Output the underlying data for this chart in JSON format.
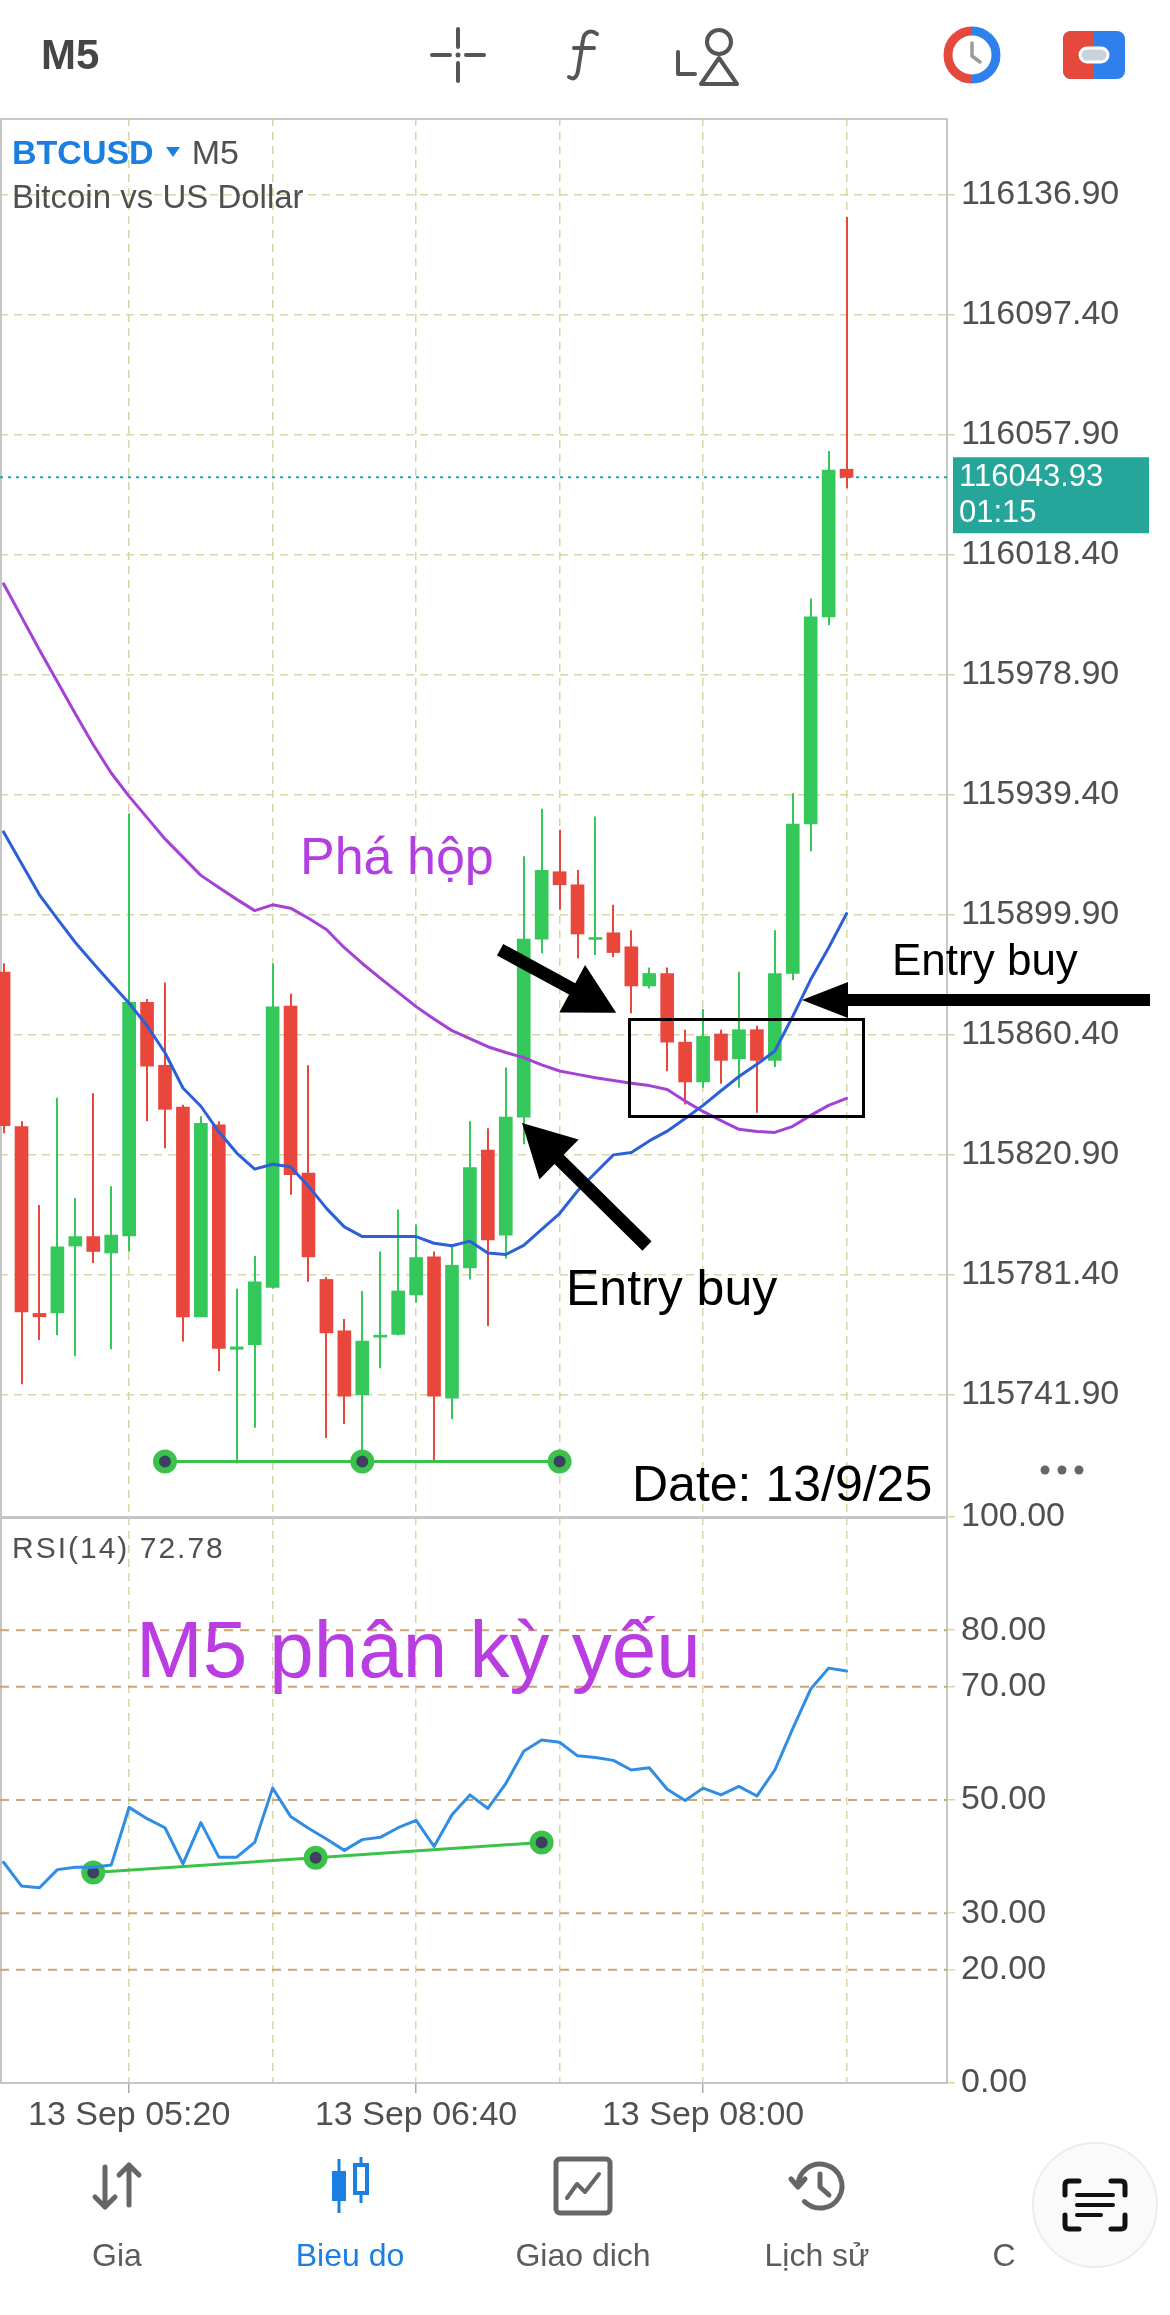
{
  "chart_data": [
    {
      "type": "candlestick",
      "title": "BTCUSD",
      "subtitle": "Bitcoin vs US Dollar",
      "x": [
        "--09-13T04:45",
        "--09-13T04:50",
        "--09-13T04:55",
        "--09-13T05:00",
        "--09-13T05:05",
        "--09-13T05:10",
        "--09-13T05:15",
        "--09-13T05:20",
        "--09-13T05:25",
        "--09-13T05:30",
        "--09-13T05:35",
        "--09-13T05:40",
        "--09-13T05:45",
        "--09-13T05:50",
        "--09-13T05:55",
        "--09-13T06:00",
        "--09-13T06:05",
        "--09-13T06:10",
        "--09-13T06:15",
        "--09-13T06:20",
        "--09-13T06:25",
        "--09-13T06:30",
        "--09-13T06:35",
        "--09-13T06:40",
        "--09-13T06:45",
        "--09-13T06:50",
        "--09-13T06:55",
        "--09-13T07:00",
        "--09-13T07:05",
        "--09-13T07:10",
        "--09-13T07:15",
        "--09-13T07:20",
        "--09-13T07:25",
        "--09-13T07:30",
        "--09-13T07:35",
        "--09-13T07:40",
        "--09-13T07:45",
        "--09-13T07:50",
        "--09-13T07:55",
        "--09-13T08:00",
        "--09-13T08:05",
        "--09-13T08:10",
        "--09-13T08:15",
        "--09-13T08:20",
        "--09-13T08:25",
        "--09-13T08:30",
        "--09-13T08:35",
        "--09-13T08:40"
      ],
      "ohlc": [
        [
          115881.1,
          115884.0,
          115828.0,
          115830.5
        ],
        [
          115830.2,
          115832.0,
          115745.4,
          115769.2
        ],
        [
          115768.7,
          115804.4,
          115760.0,
          115767.6
        ],
        [
          115768.9,
          115839.7,
          115761.5,
          115790.6
        ],
        [
          115790.9,
          115806.7,
          115754.6,
          115794.0
        ],
        [
          115794.0,
          115841.2,
          115785.3,
          115789.1
        ],
        [
          115788.6,
          115810.6,
          115756.9,
          115794.5
        ],
        [
          115794.2,
          115933.3,
          115789.1,
          115871.1
        ],
        [
          115871.1,
          115872.2,
          115832.0,
          115850.1
        ],
        [
          115850.4,
          115877.6,
          115823.1,
          115835.9
        ],
        [
          115836.6,
          115837.4,
          115759.5,
          115767.6
        ],
        [
          115767.6,
          115833.6,
          115767.6,
          115831.3
        ],
        [
          115830.8,
          115832.0,
          115749.7,
          115757.2
        ],
        [
          115756.9,
          115776.8,
          115719.3,
          115757.7
        ],
        [
          115758.4,
          115787.6,
          115731.1,
          115779.1
        ],
        [
          115777.3,
          115883.9,
          115776.8,
          115869.6
        ],
        [
          115869.9,
          115873.9,
          115807.8,
          115814.4
        ],
        [
          115814.9,
          115850.4,
          115779.1,
          115787.3
        ],
        [
          115779.9,
          115780.7,
          115727.7,
          115762.3
        ],
        [
          115763.0,
          115766.9,
          115732.3,
          115741.5
        ],
        [
          115741.9,
          115776.1,
          115720.8,
          115759.6
        ],
        [
          115760.9,
          115789.1,
          115750.7,
          115761.2
        ],
        [
          115761.8,
          115802.9,
          115761.5,
          115776.1
        ],
        [
          115774.8,
          115798.0,
          115772.2,
          115787.1
        ],
        [
          115787.3,
          115789.1,
          115720.1,
          115741.5
        ],
        [
          115740.8,
          115791.4,
          115733.9,
          115784.5
        ],
        [
          115783.7,
          115832.0,
          115779.9,
          115816.7
        ],
        [
          115822.5,
          115829.7,
          115764.6,
          115792.9
        ],
        [
          115794.5,
          115849.7,
          115786.8,
          115833.3
        ],
        [
          115833.3,
          115919.2,
          115824.4,
          115891.9
        ],
        [
          115891.9,
          115934.8,
          115887.3,
          115914.6
        ],
        [
          115914.1,
          115927.9,
          115901.6,
          115909.8
        ],
        [
          115909.8,
          115914.7,
          115885.6,
          115893.6
        ],
        [
          115891.8,
          115932.3,
          115886.7,
          115892.3
        ],
        [
          115894.0,
          115903.2,
          115886.0,
          115887.5
        ],
        [
          115889.4,
          115894.8,
          115867.5,
          115876.5
        ],
        [
          115876.5,
          115882.6,
          115875.7,
          115880.6
        ],
        [
          115880.6,
          115882.6,
          115848.4,
          115858.0
        ],
        [
          115858.0,
          115862.1,
          115837.5,
          115844.9
        ],
        [
          115844.9,
          115868.9,
          115843.0,
          115859.9
        ],
        [
          115860.7,
          115862.1,
          115844.3,
          115852.0
        ],
        [
          115852.5,
          115881.2,
          115843.0,
          115862.1
        ],
        [
          115862.1,
          115863.4,
          115834.8,
          115852.0
        ],
        [
          115852.0,
          115894.8,
          115849.8,
          115880.6
        ],
        [
          115880.6,
          115939.9,
          115878.4,
          115929.8
        ],
        [
          115929.8,
          116004.0,
          115920.8,
          115998.0
        ],
        [
          115998.0,
          116052.6,
          115995.3,
          116046.3
        ],
        [
          116046.6,
          116129.6,
          116040.3,
          116043.93
        ]
      ],
      "colors": [
        "#e9473c",
        "#e9473c",
        "#e9473c",
        "#34c759",
        "#34c759",
        "#e9473c",
        "#34c759",
        "#34c759",
        "#e9473c",
        "#e9473c",
        "#e9473c",
        "#34c759",
        "#e9473c",
        "#34c759",
        "#34c759",
        "#34c759",
        "#e9473c",
        "#e9473c",
        "#e9473c",
        "#e9473c",
        "#34c759",
        "#34c759",
        "#34c759",
        "#34c759",
        "#e9473c",
        "#34c759",
        "#34c759",
        "#e9473c",
        "#34c759",
        "#34c759",
        "#34c759",
        "#e9473c",
        "#e9473c",
        "#34c759",
        "#e9473c",
        "#e9473c",
        "#34c759",
        "#e9473c",
        "#e9473c",
        "#34c759",
        "#e9473c",
        "#34c759",
        "#e9473c",
        "#34c759",
        "#34c759",
        "#34c759",
        "#34c759",
        "#e9473c"
      ],
      "series": [
        {
          "type": "line",
          "color": "#2d5fd8",
          "values": [
            115927.2,
            115916.8,
            115906.5,
            115898.6,
            115890.8,
            115884.0,
            115877.3,
            115870.8,
            115863.4,
            115854.5,
            115842.9,
            115836.9,
            115828.5,
            115821.5,
            115816.2,
            115817.8,
            115817.0,
            115810.6,
            115803.3,
            115797.2,
            115794.0,
            115794.0,
            115794.0,
            115794.0,
            115791.8,
            115791.0,
            115792.5,
            115788.6,
            115788.1,
            115791.1,
            115796.4,
            115801.6,
            115809.0,
            115815.0,
            115820.9,
            115821.7,
            115825.5,
            115828.7,
            115832.9,
            115837.2,
            115842.0,
            115846.7,
            115850.7,
            115855.1,
            115866.5,
            115878.6,
            115889.1,
            115900.3
          ]
        },
        {
          "type": "line",
          "color": "#a542d6",
          "values": [
            116008.9,
            115998.0,
            115987.1,
            115976.6,
            115966.1,
            115955.9,
            115946.6,
            115938.9,
            115931.9,
            115924.9,
            115918.9,
            115912.9,
            115908.9,
            115905.0,
            115901.3,
            115903.2,
            115902.1,
            115898.8,
            115895.1,
            115889.1,
            115883.9,
            115879.1,
            115874.4,
            115869.7,
            115865.6,
            115861.8,
            115859.2,
            115856.5,
            115854.6,
            115852.9,
            115850.5,
            115848.5,
            115847.4,
            115846.3,
            115845.4,
            115844.5,
            115843.7,
            115842.4,
            115838.6,
            115835.2,
            115832.2,
            115829.3,
            115828.6,
            115828.3,
            115830.3,
            115833.9,
            115837.2,
            115839.5
          ]
        },
        {
          "type": "line",
          "color": "#3cc24b",
          "marker": "circle",
          "x": [
            "--09-13T05:30",
            "--09-13T06:25",
            "--09-13T07:20"
          ],
          "values": [
            115720,
            115720,
            115720
          ]
        }
      ],
      "xlim": [
        "--09-13T04:44",
        "--09-13T09:08"
      ],
      "xticks": [
        {
          "value": "--09-13T05:20",
          "label": null
        },
        {
          "value": "--09-13T06:00",
          "label": null
        },
        {
          "value": "--09-13T06:40",
          "label": null
        },
        {
          "value": "--09-13T07:20",
          "label": null
        },
        {
          "value": "--09-13T08:00",
          "label": null
        },
        {
          "value": "--09-13T08:40",
          "label": null
        }
      ],
      "ylim": [
        115701.7,
        116162.2
      ],
      "yticks": [
        {
          "value": 115741.9,
          "label": "115741.90"
        },
        {
          "value": 115781.4,
          "label": "115781.40"
        },
        {
          "value": 115820.9,
          "label": "115820.90"
        },
        {
          "value": 115860.4,
          "label": "115860.40"
        },
        {
          "value": 115899.9,
          "label": "115899.90"
        },
        {
          "value": 115939.4,
          "label": "115939.40"
        },
        {
          "value": 115978.9,
          "label": "115978.90"
        },
        {
          "value": 116018.4,
          "label": "116018.40"
        },
        {
          "value": 116057.9,
          "label": "116057.90"
        },
        {
          "value": 116097.4,
          "label": "116097.40"
        },
        {
          "value": 116136.9,
          "label": "116136.90"
        }
      ],
      "grid": true,
      "tick_labels": "y",
      "ref_lines": [
        {
          "axis": "y",
          "value": 116043.93,
          "label": "116043.93 01:15",
          "color": "#26a69a",
          "line_style": "dotted"
        }
      ],
      "annotations": [
        "M5",
        "M5",
        "Phá hộp",
        "Entry buy",
        "Entry buy",
        "Date: 13/9/25"
      ]
    },
    {
      "type": "line",
      "title": "RSI(14) 72.78",
      "x": [
        "--09-13T04:45",
        "--09-13T04:50",
        "--09-13T04:55",
        "--09-13T05:00",
        "--09-13T05:05",
        "--09-13T05:10",
        "--09-13T05:15",
        "--09-13T05:20",
        "--09-13T05:25",
        "--09-13T05:30",
        "--09-13T05:35",
        "--09-13T05:40",
        "--09-13T05:45",
        "--09-13T05:50",
        "--09-13T05:55",
        "--09-13T06:00",
        "--09-13T06:05",
        "--09-13T06:10",
        "--09-13T06:15",
        "--09-13T06:20",
        "--09-13T06:25",
        "--09-13T06:30",
        "--09-13T06:35",
        "--09-13T06:40",
        "--09-13T06:45",
        "--09-13T06:50",
        "--09-13T06:55",
        "--09-13T07:00",
        "--09-13T07:05",
        "--09-13T07:10",
        "--09-13T07:15",
        "--09-13T07:20",
        "--09-13T07:25",
        "--09-13T07:30",
        "--09-13T07:35",
        "--09-13T07:40",
        "--09-13T07:45",
        "--09-13T07:50",
        "--09-13T07:55",
        "--09-13T08:00",
        "--09-13T08:05",
        "--09-13T08:10",
        "--09-13T08:15",
        "--09-13T08:20",
        "--09-13T08:25",
        "--09-13T08:30",
        "--09-13T08:35",
        "--09-13T08:40"
      ],
      "series": [
        {
          "color": "#2f8de4",
          "values": [
            39.0,
            34.8,
            34.5,
            37.7,
            38.1,
            38.1,
            38.5,
            48.7,
            46.7,
            45.1,
            38.7,
            46.0,
            39.9,
            39.9,
            42.5,
            52.1,
            47.1,
            45.0,
            43.1,
            41.1,
            43.0,
            43.4,
            45.1,
            46.4,
            41.8,
            47.4,
            50.9,
            48.5,
            52.9,
            58.6,
            60.6,
            60.2,
            57.8,
            57.5,
            57.0,
            55.3,
            55.7,
            51.9,
            49.9,
            52.1,
            50.9,
            52.4,
            50.7,
            55.3,
            62.6,
            69.6,
            73.3,
            72.8
          ]
        },
        {
          "color": "#3cc24b",
          "marker": "circle",
          "x": [
            "--09-13T05:10",
            "--09-13T06:12",
            "--09-13T07:15"
          ],
          "values": [
            37.2,
            39.8,
            42.5
          ]
        }
      ],
      "xlim": [
        "--09-13T04:44",
        "--09-13T09:08"
      ],
      "xticks": [
        {
          "value": "--09-13T05:20",
          "label": "13 Sep 05:20"
        },
        {
          "value": "--09-13T06:00",
          "label": null
        },
        {
          "value": "--09-13T06:40",
          "label": "13 Sep 06:40"
        },
        {
          "value": "--09-13T07:20",
          "label": null
        },
        {
          "value": "--09-13T08:00",
          "label": "13 Sep 08:00"
        },
        {
          "value": "--09-13T08:40",
          "label": null
        }
      ],
      "ylim": [
        0,
        100
      ],
      "yticks": [
        {
          "value": 0,
          "label": "0.00"
        },
        {
          "value": 20,
          "label": "20.00"
        },
        {
          "value": 30,
          "label": "30.00"
        },
        {
          "value": 50,
          "label": "50.00"
        },
        {
          "value": 70,
          "label": "70.00"
        },
        {
          "value": 80,
          "label": "80.00"
        },
        {
          "value": 100,
          "label": "100.00"
        }
      ],
      "grid": "x",
      "ref_lines": [
        {
          "axis": "y",
          "value": 80,
          "color": "#c9a57a",
          "line_style": "dashed"
        },
        {
          "axis": "y",
          "value": 70,
          "color": "#c9a57a",
          "line_style": "dashed"
        },
        {
          "axis": "y",
          "value": 50,
          "color": "#c9a57a",
          "line_style": "dashed"
        },
        {
          "axis": "y",
          "value": 30,
          "color": "#c9a57a",
          "line_style": "dashed"
        },
        {
          "axis": "y",
          "value": 20,
          "color": "#c9a57a",
          "line_style": "dashed"
        }
      ],
      "annotations": [
        "M5 phân kỳ yếu",
        "Gia",
        "Bieu do",
        "Giao dich",
        "Lịch sử",
        "C"
      ]
    }
  ]
}
